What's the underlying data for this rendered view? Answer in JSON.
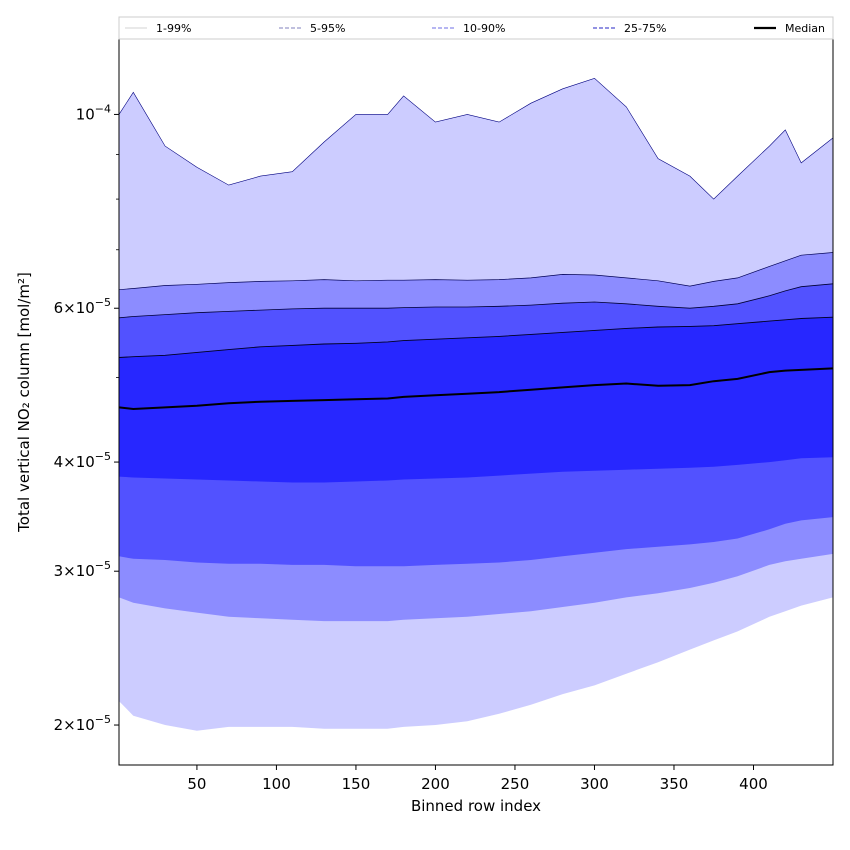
{
  "chart_data": {
    "type": "area",
    "xlabel": "Binned row index",
    "ylabel": "Total vertical NO₂ column [mol/m²]",
    "xlim": [
      1,
      450
    ],
    "ylim": [
      1.8e-05,
      0.000122
    ],
    "yscale": "log",
    "grid": false,
    "legend_position": "top",
    "x_ticks": [
      {
        "value": 50,
        "label": "50"
      },
      {
        "value": 100,
        "label": "100"
      },
      {
        "value": 150,
        "label": "150"
      },
      {
        "value": 200,
        "label": "200"
      },
      {
        "value": 250,
        "label": "250"
      },
      {
        "value": 300,
        "label": "300"
      },
      {
        "value": 350,
        "label": "350"
      },
      {
        "value": 400,
        "label": "400"
      }
    ],
    "y_ticks": [
      {
        "value": 2e-05,
        "mantissa": "2×10",
        "exponent": "−5"
      },
      {
        "value": 3e-05,
        "mantissa": "3×10",
        "exponent": "−5"
      },
      {
        "value": 4e-05,
        "mantissa": "4×10",
        "exponent": "−5"
      },
      {
        "value": 6e-05,
        "mantissa": "6×10",
        "exponent": "−5"
      },
      {
        "value": 0.0001,
        "mantissa": "10",
        "exponent": "−4"
      }
    ],
    "y_minor_ticks": [
      5e-05,
      7e-05,
      8e-05,
      9e-05
    ],
    "x": [
      1,
      10,
      30,
      50,
      70,
      90,
      110,
      130,
      150,
      170,
      180,
      200,
      220,
      240,
      260,
      280,
      300,
      320,
      340,
      360,
      375,
      390,
      410,
      420,
      430,
      450
    ],
    "bands": [
      {
        "name": "1-99%",
        "color": "#ccccff",
        "line_color": "#000080",
        "line_style": "solid",
        "line_width": 0.6,
        "lower": [
          2.13e-05,
          2.05e-05,
          2e-05,
          1.97e-05,
          1.99e-05,
          1.99e-05,
          1.99e-05,
          1.98e-05,
          1.98e-05,
          1.98e-05,
          1.99e-05,
          2e-05,
          2.02e-05,
          2.06e-05,
          2.11e-05,
          2.17e-05,
          2.22e-05,
          2.29e-05,
          2.36e-05,
          2.44e-05,
          2.5e-05,
          2.56e-05,
          2.66e-05,
          2.7e-05,
          2.74e-05,
          2.8e-05
        ],
        "upper": [
          0.0001,
          0.000106,
          9.2e-05,
          8.7e-05,
          8.3e-05,
          8.5e-05,
          8.6e-05,
          9.3e-05,
          0.0001,
          0.0001,
          0.000105,
          9.8e-05,
          0.0001,
          9.8e-05,
          0.000103,
          0.000107,
          0.00011,
          0.000102,
          8.9e-05,
          8.5e-05,
          8e-05,
          8.5e-05,
          9.2e-05,
          9.6e-05,
          8.8e-05,
          9.4e-05
        ]
      },
      {
        "name": "5-95%",
        "color": "#8c8cff",
        "line_color": "#000055",
        "line_style": "solid",
        "line_width": 0.7,
        "lower": [
          2.8e-05,
          2.76e-05,
          2.72e-05,
          2.69e-05,
          2.66e-05,
          2.65e-05,
          2.64e-05,
          2.63e-05,
          2.63e-05,
          2.63e-05,
          2.64e-05,
          2.65e-05,
          2.66e-05,
          2.68e-05,
          2.7e-05,
          2.73e-05,
          2.76e-05,
          2.8e-05,
          2.83e-05,
          2.87e-05,
          2.91e-05,
          2.96e-05,
          3.05e-05,
          3.08e-05,
          3.1e-05,
          3.14e-05
        ],
        "upper": [
          6.3e-05,
          6.32e-05,
          6.37e-05,
          6.39e-05,
          6.42e-05,
          6.44e-05,
          6.45e-05,
          6.47e-05,
          6.45e-05,
          6.46e-05,
          6.46e-05,
          6.47e-05,
          6.46e-05,
          6.47e-05,
          6.5e-05,
          6.56e-05,
          6.55e-05,
          6.5e-05,
          6.45e-05,
          6.36e-05,
          6.44e-05,
          6.5e-05,
          6.7e-05,
          6.8e-05,
          6.9e-05,
          6.95e-05
        ]
      },
      {
        "name": "10-90%",
        "color": "#5252ff",
        "line_color": "#000033",
        "line_style": "solid",
        "line_width": 0.8,
        "lower": [
          3.12e-05,
          3.1e-05,
          3.09e-05,
          3.07e-05,
          3.06e-05,
          3.06e-05,
          3.05e-05,
          3.05e-05,
          3.04e-05,
          3.04e-05,
          3.04e-05,
          3.05e-05,
          3.06e-05,
          3.07e-05,
          3.09e-05,
          3.12e-05,
          3.15e-05,
          3.18e-05,
          3.2e-05,
          3.22e-05,
          3.24e-05,
          3.27e-05,
          3.35e-05,
          3.4e-05,
          3.43e-05,
          3.46e-05
        ],
        "upper": [
          5.85e-05,
          5.87e-05,
          5.9e-05,
          5.93e-05,
          5.95e-05,
          5.97e-05,
          5.99e-05,
          6e-05,
          6e-05,
          6e-05,
          6.01e-05,
          6.02e-05,
          6.02e-05,
          6.03e-05,
          6.05e-05,
          6.08e-05,
          6.1e-05,
          6.07e-05,
          6.03e-05,
          6e-05,
          6.03e-05,
          6.07e-05,
          6.2e-05,
          6.28e-05,
          6.35e-05,
          6.4e-05
        ]
      },
      {
        "name": "25-75%",
        "color": "#2727ff",
        "line_color": "#000022",
        "line_style": "solid",
        "line_width": 0.9,
        "lower": [
          3.85e-05,
          3.84e-05,
          3.83e-05,
          3.82e-05,
          3.81e-05,
          3.8e-05,
          3.79e-05,
          3.79e-05,
          3.8e-05,
          3.81e-05,
          3.82e-05,
          3.83e-05,
          3.84e-05,
          3.86e-05,
          3.88e-05,
          3.9e-05,
          3.91e-05,
          3.92e-05,
          3.93e-05,
          3.94e-05,
          3.95e-05,
          3.97e-05,
          4e-05,
          4.02e-05,
          4.04e-05,
          4.05e-05
        ],
        "upper": [
          5.27e-05,
          5.28e-05,
          5.3e-05,
          5.34e-05,
          5.38e-05,
          5.42e-05,
          5.44e-05,
          5.46e-05,
          5.47e-05,
          5.49e-05,
          5.51e-05,
          5.53e-05,
          5.55e-05,
          5.57e-05,
          5.6e-05,
          5.63e-05,
          5.66e-05,
          5.69e-05,
          5.71e-05,
          5.72e-05,
          5.73e-05,
          5.76e-05,
          5.8e-05,
          5.82e-05,
          5.84e-05,
          5.86e-05
        ]
      }
    ],
    "median": {
      "name": "Median",
      "color": "#000000",
      "line_width": 2,
      "values": [
        4.62e-05,
        4.6e-05,
        4.62e-05,
        4.64e-05,
        4.67e-05,
        4.69e-05,
        4.7e-05,
        4.71e-05,
        4.72e-05,
        4.73e-05,
        4.75e-05,
        4.77e-05,
        4.79e-05,
        4.81e-05,
        4.84e-05,
        4.87e-05,
        4.9e-05,
        4.92e-05,
        4.89e-05,
        4.9e-05,
        4.95e-05,
        4.98e-05,
        5.07e-05,
        5.09e-05,
        5.1e-05,
        5.12e-05
      ]
    },
    "legend": [
      {
        "label": "1-99%",
        "color": "#dcdcdc",
        "line_style": "solid"
      },
      {
        "label": "5-95%",
        "color": "#9a9aca",
        "line_style": "dashed"
      },
      {
        "label": "10-90%",
        "color": "#8a8aea",
        "line_style": "dashed"
      },
      {
        "label": "25-75%",
        "color": "#5252d0",
        "line_style": "dashed"
      },
      {
        "label": "Median",
        "color": "#000000",
        "line_style": "solid"
      }
    ]
  }
}
